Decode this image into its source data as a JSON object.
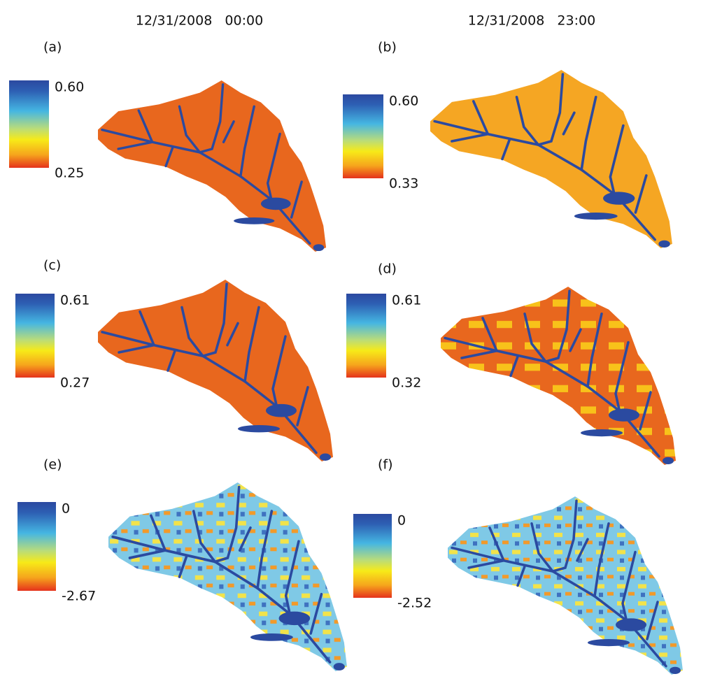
{
  "columns": [
    "12/31/2008   00:00",
    "12/31/2008   23:00"
  ],
  "panels": [
    {
      "label": "(a)",
      "max": "0.60",
      "min": "0.25"
    },
    {
      "label": "(b)",
      "max": "0.60",
      "min": "0.33"
    },
    {
      "label": "(c)",
      "max": "0.61",
      "min": "0.27"
    },
    {
      "label": "(d)",
      "max": "0.61",
      "min": "0.32"
    },
    {
      "label": "(e)",
      "max": "0",
      "min": "-2.67"
    },
    {
      "label": "(f)",
      "max": "0",
      "min": "-2.52"
    }
  ]
}
